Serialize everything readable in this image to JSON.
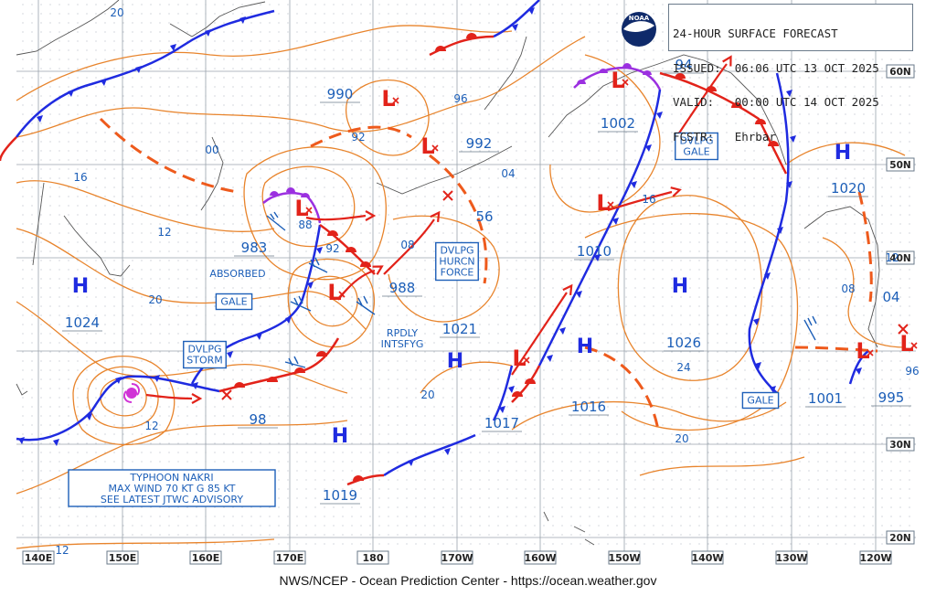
{
  "header": {
    "lines": [
      "24-HOUR SURFACE FORECAST",
      "ISSUED:  06:06 UTC 13 OCT 2025",
      "VALID:   00:00 UTC 14 OCT 2025",
      "FCSTR:   Ehrbar"
    ],
    "logo_text": "NOAA"
  },
  "footer": "NWS/NCEP - Ocean Prediction Center - https://ocean.weather.gov",
  "longitude_labels": [
    "140E",
    "150E",
    "160E",
    "170E",
    "180",
    "170W",
    "160W",
    "150W",
    "140W",
    "130W",
    "120W"
  ],
  "latitude_labels": [
    "60N",
    "50N",
    "40N",
    "30N",
    "20N"
  ],
  "pressure_centers": [
    {
      "type": "H",
      "value": "1024"
    },
    {
      "type": "L",
      "value": "990"
    },
    {
      "type": "L",
      "value": "983"
    },
    {
      "type": "L",
      "value": "988"
    },
    {
      "type": "L",
      "value": "992"
    },
    {
      "type": "H",
      "value": "1021"
    },
    {
      "type": "L",
      "value": "1002"
    },
    {
      "type": "L",
      "value": "1010"
    },
    {
      "type": "H",
      "value": "1026"
    },
    {
      "type": "H",
      "value": "1020"
    },
    {
      "type": "H",
      "value": "1019"
    },
    {
      "type": "L",
      "value": "1017"
    },
    {
      "type": "H",
      "value": "1016"
    },
    {
      "type": "L",
      "value": "1001"
    },
    {
      "type": "L",
      "value": "995"
    },
    {
      "type": "L",
      "value": "94"
    },
    {
      "type": "L",
      "value": "98"
    }
  ],
  "isobar_labels": [
    "20",
    "16",
    "12",
    "20",
    "00",
    "92",
    "88",
    "92",
    "96",
    "04",
    "08",
    "56",
    "12",
    "20",
    "24",
    "20",
    "16",
    "12",
    "08",
    "04",
    "96",
    "12"
  ],
  "boxed_labels": [
    "GALE",
    "DVLPG\nSTORM",
    "DVLPG\nHURCN\nFORCE",
    "DVLPG\nGALE",
    "GALE"
  ],
  "annotations": [
    "ABSORBED",
    "RPDLY\nINTSFYG"
  ],
  "typhoon_box": [
    "TYPHOON NAKRI",
    "MAX WIND 70 KT G 85 KT",
    "SEE LATEST JTWC ADVISORY"
  ],
  "colors": {
    "isobar": "#e8842c",
    "cold_front": "#1f2be0",
    "warm_front": "#e2231a",
    "occluded": "#9b30e0",
    "trough": "#ee5a1c",
    "label_blue": "#1d5fb8",
    "grid": "#9aa3ad"
  }
}
